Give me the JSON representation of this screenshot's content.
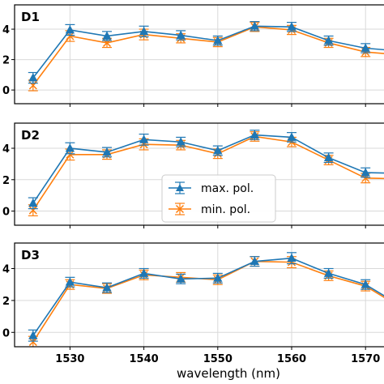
{
  "chart_data": {
    "type": "line",
    "xlabel": "wavelength (nm)",
    "xlim": [
      1522.5,
      1572.5
    ],
    "xticks": [
      1530,
      1540,
      1550,
      1560,
      1570
    ],
    "ylim": [
      -0.9,
      5.6
    ],
    "yticks": [
      0,
      2,
      4
    ],
    "grid": true,
    "legend": {
      "placement": "center",
      "panel": "D2",
      "entries": [
        "max. pol.",
        "min. pol."
      ]
    },
    "colors": {
      "max. pol.": "#1f77b4",
      "min. pol.": "#ff7f0e"
    },
    "x": [
      1525,
      1530,
      1535,
      1540,
      1545,
      1550,
      1555,
      1560,
      1565,
      1570,
      1575
    ],
    "panels": [
      {
        "label": "D1",
        "series": [
          {
            "name": "max. pol.",
            "marker": "triangle",
            "values": [
              0.8,
              3.95,
              3.55,
              3.85,
              3.6,
              3.25,
              4.2,
              4.15,
              3.25,
              2.75,
              2.55
            ],
            "errors": [
              0.35,
              0.35,
              0.3,
              0.35,
              0.3,
              0.3,
              0.3,
              0.3,
              0.3,
              0.3,
              0.3
            ]
          },
          {
            "name": "min. pol.",
            "marker": "x",
            "values": [
              0.3,
              3.55,
              3.1,
              3.65,
              3.4,
              3.15,
              4.15,
              3.95,
              3.1,
              2.5,
              2.3
            ],
            "errors": [
              0.35,
              0.35,
              0.3,
              0.35,
              0.3,
              0.3,
              0.3,
              0.3,
              0.3,
              0.3,
              0.3
            ]
          }
        ]
      },
      {
        "label": "D2",
        "series": [
          {
            "name": "max. pol.",
            "marker": "triangle",
            "values": [
              0.5,
              4.0,
              3.75,
              4.55,
              4.4,
              3.85,
              4.85,
              4.7,
              3.4,
              2.45,
              2.4
            ],
            "errors": [
              0.35,
              0.35,
              0.3,
              0.35,
              0.3,
              0.3,
              0.3,
              0.3,
              0.3,
              0.3,
              0.3
            ]
          },
          {
            "name": "min. pol.",
            "marker": "x",
            "values": [
              0.05,
              3.6,
              3.6,
              4.25,
              4.2,
              3.65,
              4.75,
              4.4,
              3.25,
              2.1,
              2.05
            ],
            "errors": [
              0.35,
              0.35,
              0.3,
              0.35,
              0.3,
              0.3,
              0.3,
              0.3,
              0.3,
              0.3,
              0.3
            ]
          }
        ]
      },
      {
        "label": "D3",
        "series": [
          {
            "name": "max. pol.",
            "marker": "triangle",
            "values": [
              -0.2,
              3.15,
              2.8,
              3.7,
              3.35,
              3.4,
              4.45,
              4.65,
              3.7,
              3.0,
              1.6
            ],
            "errors": [
              0.35,
              0.3,
              0.3,
              0.3,
              0.3,
              0.3,
              0.3,
              0.35,
              0.3,
              0.3,
              0.3
            ]
          },
          {
            "name": "min. pol.",
            "marker": "x",
            "values": [
              -0.6,
              3.0,
              2.75,
              3.6,
              3.45,
              3.3,
              4.45,
              4.4,
              3.55,
              2.9,
              1.5
            ],
            "errors": [
              0.35,
              0.3,
              0.3,
              0.3,
              0.3,
              0.3,
              0.3,
              0.35,
              0.3,
              0.3,
              0.3
            ]
          }
        ]
      }
    ]
  }
}
